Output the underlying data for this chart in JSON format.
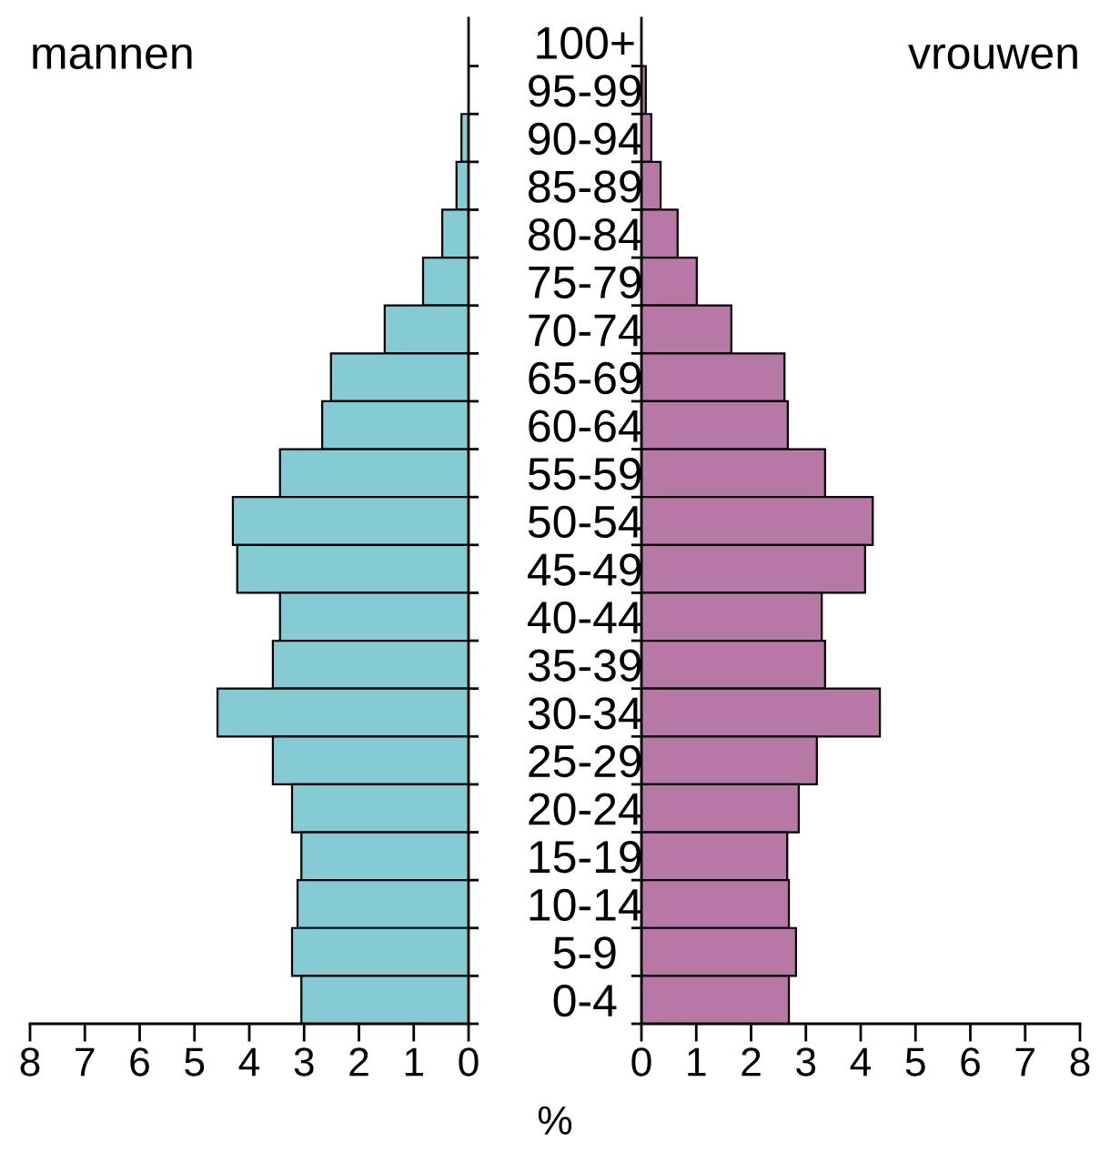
{
  "chart_data": [
    {
      "type": "bar",
      "orientation": "horizontal",
      "title": "mannen",
      "categories": [
        "100+",
        "95-99",
        "90-94",
        "85-89",
        "80-84",
        "75-79",
        "70-74",
        "65-69",
        "60-64",
        "55-59",
        "50-54",
        "45-49",
        "40-44",
        "35-39",
        "30-34",
        "25-29",
        "20-24",
        "15-19",
        "10-14",
        "5-9",
        "0-4"
      ],
      "series": [
        {
          "color": "#84cbd3",
          "values": [
            0,
            0,
            0.13,
            0.22,
            0.48,
            0.83,
            1.53,
            2.51,
            2.67,
            3.44,
            4.3,
            4.22,
            3.44,
            3.57,
            4.58,
            3.57,
            3.22,
            3.05,
            3.12,
            3.22,
            3.05
          ]
        }
      ],
      "xlim": [
        8,
        0
      ],
      "xticks": [
        8,
        7,
        6,
        5,
        4,
        3,
        2,
        1,
        0
      ],
      "grid": false,
      "legend": false,
      "annotations": [
        "%"
      ]
    },
    {
      "type": "bar",
      "orientation": "horizontal",
      "title": "vrouwen",
      "categories": [
        null,
        null,
        null,
        null,
        null,
        null,
        null,
        null,
        null,
        null,
        null,
        null,
        null,
        null,
        null,
        null,
        null,
        null,
        null,
        null,
        null
      ],
      "series": [
        {
          "color": "#b878a6",
          "values": [
            0,
            0.08,
            0.18,
            0.35,
            0.66,
            1.01,
            1.64,
            2.61,
            2.67,
            3.35,
            4.22,
            4.08,
            3.29,
            3.35,
            4.35,
            3.2,
            2.87,
            2.66,
            2.69,
            2.82,
            2.69
          ]
        }
      ],
      "xlim": [
        0,
        8
      ],
      "xticks": [
        0,
        1,
        2,
        3,
        4,
        5,
        6,
        7,
        8
      ],
      "grid": false,
      "legend": false,
      "tick_labels": "x"
    }
  ]
}
